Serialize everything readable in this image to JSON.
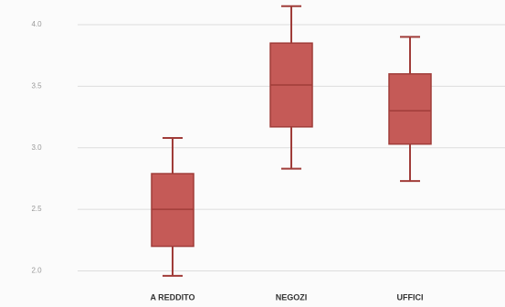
{
  "chart_data": {
    "type": "box",
    "categories": [
      "A REDDITO",
      "NEGOZI",
      "UFFICI"
    ],
    "boxes": [
      {
        "min": 1.96,
        "q1": 2.2,
        "median": 2.5,
        "q3": 2.79,
        "max": 3.08
      },
      {
        "min": 2.83,
        "q1": 3.17,
        "median": 3.51,
        "q3": 3.85,
        "max": 4.15
      },
      {
        "min": 2.73,
        "q1": 3.03,
        "median": 3.3,
        "q3": 3.6,
        "max": 3.9
      }
    ],
    "color": "#c55a57",
    "ylim": [
      1.9,
      4.2
    ],
    "yticks": [
      {
        "value": 2,
        "label": "2.0"
      },
      2.5,
      {
        "value": 3,
        "label": "3.0"
      },
      3.5,
      {
        "value": 4,
        "label": "4.0"
      }
    ],
    "grid": true
  }
}
